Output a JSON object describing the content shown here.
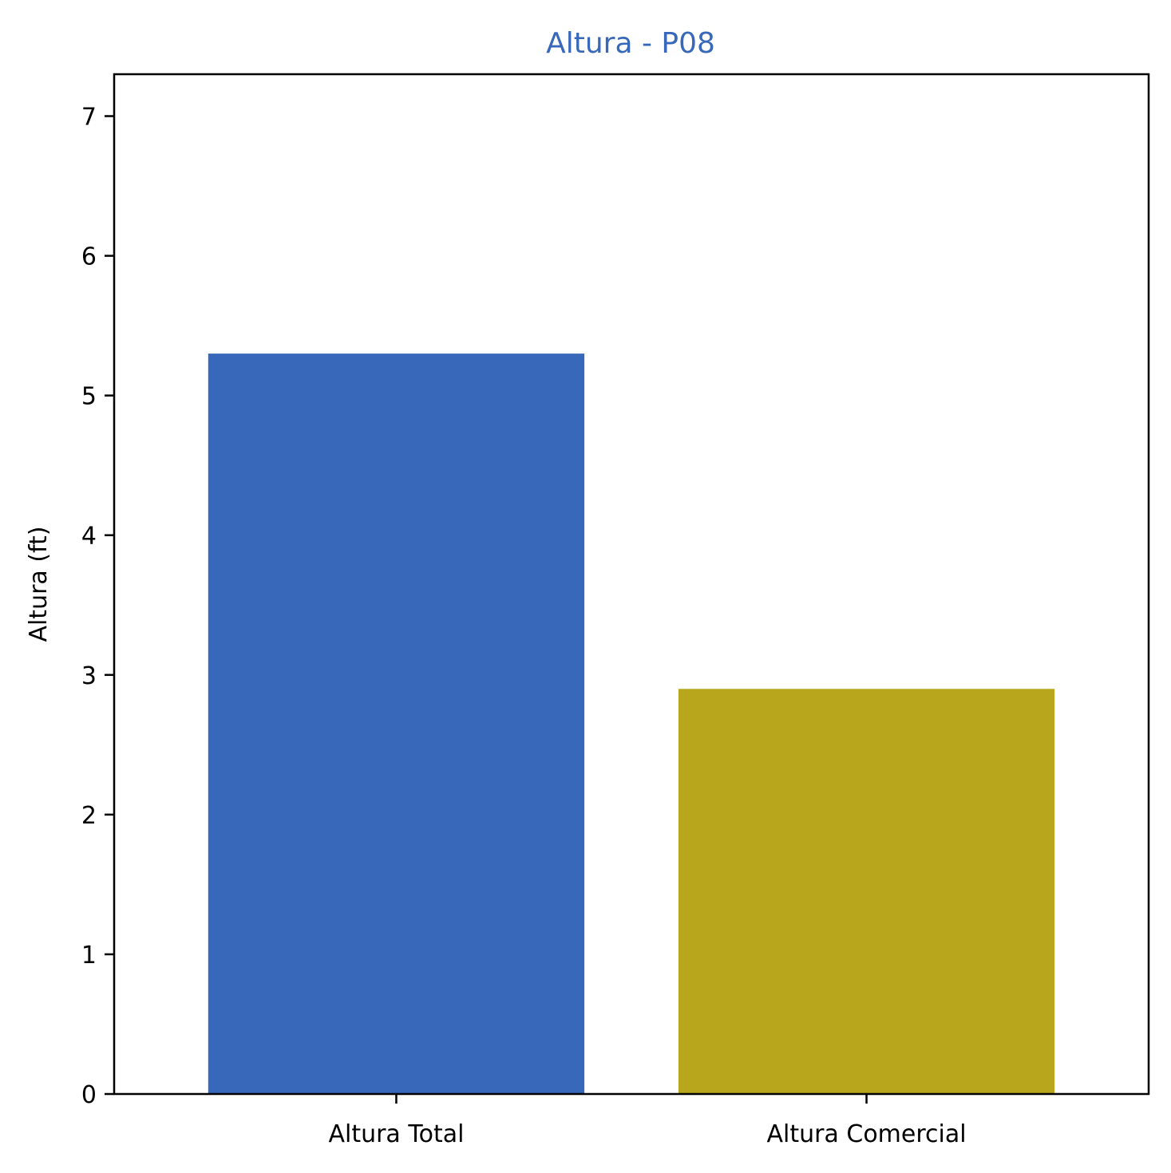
{
  "chart_data": {
    "type": "bar",
    "title": "Altura - P08",
    "title_color": "#3868b9",
    "xlabel": "",
    "ylabel": "Altura (ft)",
    "categories": [
      "Altura Total",
      "Altura Comercial"
    ],
    "values": [
      5.3,
      2.9
    ],
    "bar_colors": [
      "#3868b9",
      "#b8a71d"
    ],
    "ylim": [
      0,
      7.3
    ],
    "yticks": [
      0,
      1,
      2,
      3,
      4,
      5,
      6,
      7
    ],
    "grid": false,
    "legend": "none"
  }
}
